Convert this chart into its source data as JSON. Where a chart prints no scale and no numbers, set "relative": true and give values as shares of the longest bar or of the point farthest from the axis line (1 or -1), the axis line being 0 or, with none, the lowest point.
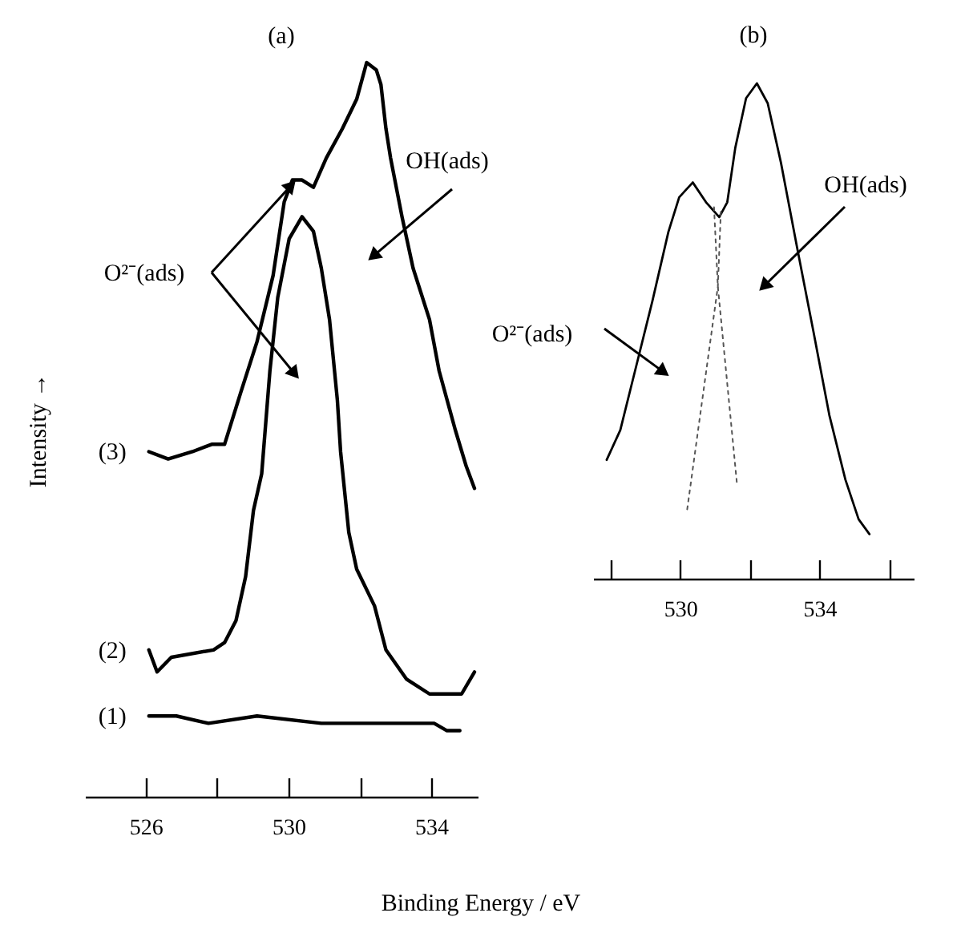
{
  "chart_data": [
    {
      "type": "line",
      "title": "(a)",
      "ylabel": "Intensity →",
      "xlabel": "Binding Energy / eV",
      "relative": true,
      "xlim": [
        524.3,
        535.3
      ],
      "xticks": [
        526,
        {
          "value": 528,
          "label": null
        },
        530,
        {
          "value": 532,
          "label": null
        },
        534
      ],
      "series": [
        {
          "name": "(1)",
          "color": "#000000",
          "x": [
            526.09,
            526.86,
            527.76,
            529.12,
            530.92,
            532.73,
            534.08,
            534.44,
            534.8
          ],
          "values": [
            0.11,
            0.11,
            0.1,
            0.11,
            0.1,
            0.1,
            0.1,
            0.09,
            0.09
          ]
        },
        {
          "name": "(2)",
          "color": "#000000",
          "x": [
            526.09,
            526.32,
            526.72,
            527.9,
            528.21,
            528.53,
            528.8,
            529.02,
            529.25,
            529.48,
            529.7,
            530.02,
            530.38,
            530.7,
            530.92,
            531.15,
            531.37,
            531.46,
            531.69,
            531.91,
            532.41,
            532.73,
            533.31,
            533.95,
            534.85,
            535.21
          ],
          "values": [
            0.2,
            0.17,
            0.19,
            0.2,
            0.21,
            0.24,
            0.3,
            0.39,
            0.44,
            0.58,
            0.68,
            0.76,
            0.79,
            0.77,
            0.72,
            0.65,
            0.54,
            0.47,
            0.36,
            0.31,
            0.26,
            0.2,
            0.16,
            0.14,
            0.14,
            0.17
          ]
        },
        {
          "name": "(3)",
          "color": "#000000",
          "x": [
            526.09,
            526.63,
            527.31,
            527.85,
            528.21,
            528.66,
            529.12,
            529.57,
            529.88,
            530.11,
            530.38,
            530.7,
            531.06,
            531.51,
            531.91,
            532.19,
            532.46,
            532.59,
            532.73,
            532.86,
            533.18,
            533.49,
            533.95,
            534.22,
            534.67,
            534.98,
            535.21
          ],
          "values": [
            0.47,
            0.46,
            0.47,
            0.48,
            0.48,
            0.55,
            0.62,
            0.71,
            0.81,
            0.84,
            0.84,
            0.83,
            0.87,
            0.91,
            0.95,
            1,
            0.99,
            0.97,
            0.91,
            0.87,
            0.79,
            0.72,
            0.65,
            0.58,
            0.5,
            0.45,
            0.42
          ]
        }
      ],
      "annotations": [
        "O²⁻(ads)",
        "OH(ads)"
      ]
    },
    {
      "type": "line",
      "title": "(b)",
      "relative": true,
      "xlim": [
        527.5,
        536.7
      ],
      "xticks": [
        {
          "value": 528,
          "label": null
        },
        530,
        {
          "value": 532,
          "label": null
        },
        534,
        {
          "value": 536,
          "label": null
        }
      ],
      "series": [
        {
          "color": "#000000",
          "x": [
            527.89,
            528.28,
            528.74,
            529.2,
            529.66,
            529.97,
            530.36,
            530.74,
            531.12,
            531.35,
            531.58,
            531.89,
            532.2,
            532.51,
            532.89,
            533.35,
            533.82,
            534.28,
            534.74,
            535.12,
            535.43
          ],
          "values": [
            0.24,
            0.3,
            0.43,
            0.56,
            0.7,
            0.77,
            0.8,
            0.76,
            0.73,
            0.76,
            0.87,
            0.97,
            1,
            0.96,
            0.84,
            0.67,
            0.5,
            0.33,
            0.2,
            0.12,
            0.09
          ]
        },
        {
          "color": "#555555",
          "line_style": "dotted",
          "x": [
            530.97,
            531.08,
            531.63
          ],
          "values": [
            0.75,
            0.59,
            0.19
          ]
        },
        {
          "color": "#555555",
          "line_style": "dotted",
          "x": [
            530.2,
            531.08,
            531.17
          ],
          "values": [
            0.14,
            0.59,
            0.75
          ]
        }
      ],
      "annotations": [
        "O²⁻(ads)",
        "OH(ads)"
      ]
    }
  ]
}
